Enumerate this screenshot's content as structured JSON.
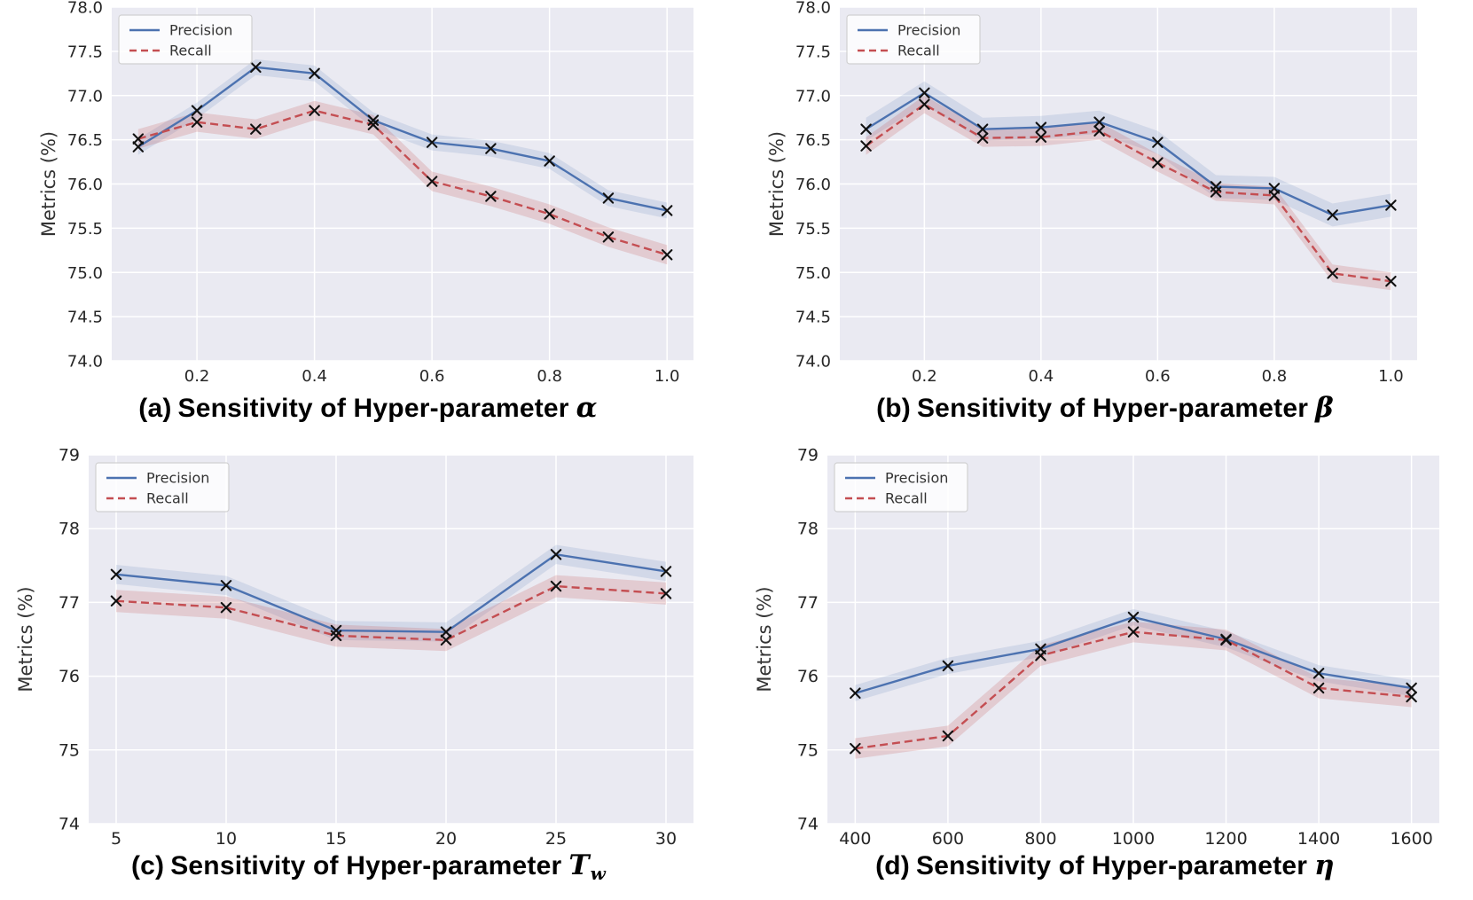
{
  "page": {
    "background": "#ffffff",
    "ylabel": "Metrics (%)"
  },
  "styles": {
    "plot_bg": "#eaeaf2",
    "grid_color": "#ffffff",
    "tick_color": "#262626",
    "axis_label_color": "#333333",
    "marker_color": "#111111",
    "precision_color": "#4C72B0",
    "recall_color": "#C44E52",
    "legend_bg": "#ffffff",
    "legend_border": "#cccccc"
  },
  "legend": {
    "items": [
      "Precision",
      "Recall"
    ]
  },
  "chart_data": [
    {
      "id": "a",
      "type": "line",
      "caption": {
        "index": "(a)",
        "text": "Sensitivity of Hyper-parameter",
        "symbol": "α",
        "subscript": ""
      },
      "ylabel": "Metrics (%)",
      "x": [
        0.1,
        0.2,
        0.3,
        0.4,
        0.5,
        0.6,
        0.7,
        0.8,
        0.9,
        1.0
      ],
      "xlim": [
        0.055,
        1.045
      ],
      "xticks": [
        0.2,
        0.4,
        0.6,
        0.8,
        1.0
      ],
      "xtick_labels": [
        "0.2",
        "0.4",
        "0.6",
        "0.8",
        "1.0"
      ],
      "ylim": [
        74.0,
        78.0
      ],
      "yticks": [
        74.0,
        74.5,
        75.0,
        75.5,
        76.0,
        76.5,
        77.0,
        77.5,
        78.0
      ],
      "ytick_labels": [
        "74.0",
        "74.5",
        "75.0",
        "75.5",
        "76.0",
        "76.5",
        "77.0",
        "77.5",
        "78.0"
      ],
      "series": [
        {
          "name": "Precision",
          "style": "solid",
          "band": 0.09,
          "values": [
            76.42,
            76.83,
            77.32,
            77.25,
            76.72,
            76.47,
            76.4,
            76.26,
            75.84,
            75.7
          ]
        },
        {
          "name": "Recall",
          "style": "dashed",
          "band": 0.11,
          "values": [
            76.51,
            76.7,
            76.62,
            76.83,
            76.67,
            76.03,
            75.86,
            75.66,
            75.4,
            75.2
          ]
        }
      ]
    },
    {
      "id": "b",
      "type": "line",
      "caption": {
        "index": "(b)",
        "text": "Sensitivity of Hyper-parameter",
        "symbol": "β",
        "subscript": ""
      },
      "ylabel": "Metrics (%)",
      "x": [
        0.1,
        0.2,
        0.3,
        0.4,
        0.5,
        0.6,
        0.7,
        0.8,
        0.9,
        1.0
      ],
      "xlim": [
        0.055,
        1.045
      ],
      "xticks": [
        0.2,
        0.4,
        0.6,
        0.8,
        1.0
      ],
      "xtick_labels": [
        "0.2",
        "0.4",
        "0.6",
        "0.8",
        "1.0"
      ],
      "ylim": [
        74.0,
        78.0
      ],
      "yticks": [
        74.0,
        74.5,
        75.0,
        75.5,
        76.0,
        76.5,
        77.0,
        77.5,
        78.0
      ],
      "ytick_labels": [
        "74.0",
        "74.5",
        "75.0",
        "75.5",
        "76.0",
        "76.5",
        "77.0",
        "77.5",
        "78.0"
      ],
      "series": [
        {
          "name": "Precision",
          "style": "solid",
          "band": 0.13,
          "values": [
            76.62,
            77.03,
            76.62,
            76.64,
            76.7,
            76.47,
            75.97,
            75.95,
            75.65,
            75.76
          ]
        },
        {
          "name": "Recall",
          "style": "dashed",
          "band": 0.1,
          "values": [
            76.43,
            76.9,
            76.52,
            76.53,
            76.6,
            76.24,
            75.91,
            75.87,
            74.99,
            74.9
          ]
        }
      ]
    },
    {
      "id": "c",
      "type": "line",
      "caption": {
        "index": "(c)",
        "text": "Sensitivity of Hyper-parameter",
        "symbol": "T",
        "subscript": "w"
      },
      "ylabel": "Metrics (%)",
      "x": [
        5,
        10,
        15,
        20,
        25,
        30
      ],
      "xlim": [
        3.75,
        31.25
      ],
      "xticks": [
        5,
        10,
        15,
        20,
        25,
        30
      ],
      "xtick_labels": [
        "5",
        "10",
        "15",
        "20",
        "25",
        "30"
      ],
      "ylim": [
        74,
        79
      ],
      "yticks": [
        74,
        75,
        76,
        77,
        78,
        79
      ],
      "ytick_labels": [
        "74",
        "75",
        "76",
        "77",
        "78",
        "79"
      ],
      "series": [
        {
          "name": "Precision",
          "style": "solid",
          "band": 0.13,
          "values": [
            77.38,
            77.23,
            76.62,
            76.6,
            77.65,
            77.42
          ]
        },
        {
          "name": "Recall",
          "style": "dashed",
          "band": 0.15,
          "values": [
            77.02,
            76.93,
            76.55,
            76.49,
            77.22,
            77.12
          ]
        }
      ]
    },
    {
      "id": "d",
      "type": "line",
      "caption": {
        "index": "(d)",
        "text": "Sensitivity of Hyper-parameter",
        "symbol": "η",
        "subscript": ""
      },
      "ylabel": "Metrics (%)",
      "x": [
        400,
        600,
        800,
        1000,
        1200,
        1400,
        1600
      ],
      "xlim": [
        340,
        1660
      ],
      "xticks": [
        400,
        600,
        800,
        1000,
        1200,
        1400,
        1600
      ],
      "xtick_labels": [
        "400",
        "600",
        "800",
        "1000",
        "1200",
        "1400",
        "1600"
      ],
      "ylim": [
        74,
        79
      ],
      "yticks": [
        74,
        75,
        76,
        77,
        78,
        79
      ],
      "ytick_labels": [
        "74",
        "75",
        "76",
        "77",
        "78",
        "79"
      ],
      "series": [
        {
          "name": "Precision",
          "style": "solid",
          "band": 0.11,
          "values": [
            75.77,
            76.14,
            76.37,
            76.8,
            76.5,
            76.04,
            75.84
          ]
        },
        {
          "name": "Recall",
          "style": "dashed",
          "band": 0.14,
          "values": [
            75.02,
            75.19,
            76.28,
            76.6,
            76.49,
            75.84,
            75.72
          ]
        }
      ]
    }
  ]
}
